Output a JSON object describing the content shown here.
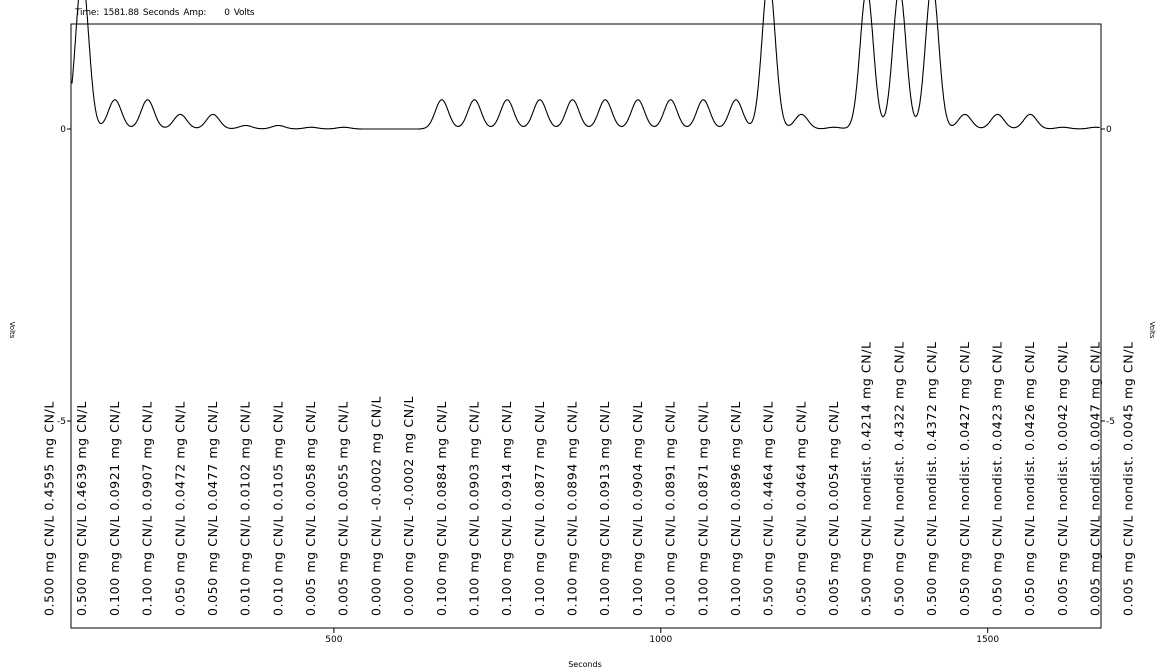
{
  "header": {
    "time_label": "Time:",
    "time_value": "1581.88",
    "time_unit": "Seconds",
    "amp_label": "Amp:",
    "amp_value": "0",
    "amp_unit": "Volts"
  },
  "chart_data": {
    "type": "line",
    "title": "",
    "xlabel": "Seconds",
    "ylabel_left": "Volts",
    "ylabel_right": "Volts",
    "xlim": [
      0,
      1590
    ],
    "ylim": [
      -9.5,
      3.8
    ],
    "x_ticks": [
      500,
      1000,
      1500
    ],
    "y_ticks": [
      0,
      -5
    ],
    "right_y_ticks": [
      0,
      -5
    ],
    "grid": false,
    "peaks": [
      {
        "x": 65,
        "height": 2.6,
        "label": "0.500 mg CN/L 0.4595 mg CN/L"
      },
      {
        "x": 115,
        "height": 2.6,
        "label": "0.500 mg CN/L 0.4639 mg CN/L"
      },
      {
        "x": 165,
        "height": 0.5,
        "label": "0.100 mg CN/L 0.0921 mg CN/L"
      },
      {
        "x": 215,
        "height": 0.5,
        "label": "0.100 mg CN/L 0.0907 mg CN/L"
      },
      {
        "x": 265,
        "height": 0.25,
        "label": "0.050 mg CN/L 0.0472 mg CN/L"
      },
      {
        "x": 315,
        "height": 0.25,
        "label": "0.050 mg CN/L 0.0477 mg CN/L"
      },
      {
        "x": 365,
        "height": 0.06,
        "label": "0.010 mg CN/L 0.0102 mg CN/L"
      },
      {
        "x": 415,
        "height": 0.06,
        "label": "0.010 mg CN/L 0.0105 mg CN/L"
      },
      {
        "x": 465,
        "height": 0.03,
        "label": "0.005 mg CN/L 0.0058 mg CN/L"
      },
      {
        "x": 515,
        "height": 0.03,
        "label": "0.005 mg CN/L 0.0055 mg CN/L"
      },
      {
        "x": 565,
        "height": 0.0,
        "label": "0.000 mg CN/L -0.0002 mg CN/L"
      },
      {
        "x": 615,
        "height": 0.0,
        "label": "0.000 mg CN/L -0.0002 mg CN/L"
      },
      {
        "x": 665,
        "height": 0.5,
        "label": "0.100 mg CN/L 0.0884 mg CN/L"
      },
      {
        "x": 715,
        "height": 0.5,
        "label": "0.100 mg CN/L 0.0903 mg CN/L"
      },
      {
        "x": 765,
        "height": 0.5,
        "label": "0.100 mg CN/L 0.0914 mg CN/L"
      },
      {
        "x": 815,
        "height": 0.5,
        "label": "0.100 mg CN/L 0.0877 mg CN/L"
      },
      {
        "x": 865,
        "height": 0.5,
        "label": "0.100 mg CN/L 0.0894 mg CN/L"
      },
      {
        "x": 915,
        "height": 0.5,
        "label": "0.100 mg CN/L 0.0913 mg CN/L"
      },
      {
        "x": 965,
        "height": 0.5,
        "label": "0.100 mg CN/L 0.0904 mg CN/L"
      },
      {
        "x": 1015,
        "height": 0.5,
        "label": "0.100 mg CN/L 0.0891 mg CN/L"
      },
      {
        "x": 1065,
        "height": 0.5,
        "label": "0.100 mg CN/L 0.0871 mg CN/L"
      },
      {
        "x": 1115,
        "height": 0.5,
        "label": "0.100 mg CN/L 0.0896 mg CN/L"
      },
      {
        "x": 1165,
        "height": 2.6,
        "label": "0.500 mg CN/L 0.4464 mg CN/L"
      },
      {
        "x": 1215,
        "height": 0.25,
        "label": "0.050 mg CN/L 0.0464 mg CN/L"
      },
      {
        "x": 1265,
        "height": 0.03,
        "label": "0.005 mg CN/L 0.0054 mg CN/L"
      },
      {
        "x": 1315,
        "height": 2.4,
        "label": "0.500 mg CN/L nondist. 0.4214 mg CN/L"
      },
      {
        "x": 1365,
        "height": 2.4,
        "label": "0.500 mg CN/L nondist. 0.4322 mg CN/L"
      },
      {
        "x": 1415,
        "height": 2.5,
        "label": "0.500 mg CN/L nondist. 0.4372 mg CN/L"
      },
      {
        "x": 1465,
        "height": 0.25,
        "label": "0.050 mg CN/L nondist. 0.0427 mg CN/L"
      },
      {
        "x": 1515,
        "height": 0.25,
        "label": "0.050 mg CN/L nondist. 0.0423 mg CN/L"
      },
      {
        "x": 1565,
        "height": 0.25,
        "label": "0.050 mg CN/L nondist. 0.0426 mg CN/L"
      },
      {
        "x": 1615,
        "height": 0.03,
        "label": "0.005 mg CN/L nondist. 0.0042 mg CN/L"
      },
      {
        "x": 1665,
        "height": 0.03,
        "label": "0.005 mg CN/L nondist. 0.0047 mg CN/L"
      },
      {
        "x": 1715,
        "height": 0.03,
        "label": "0.005 mg CN/L nondist. 0.0045 mg CN/L"
      }
    ],
    "line_color": "#000000",
    "background": "#ffffff"
  }
}
